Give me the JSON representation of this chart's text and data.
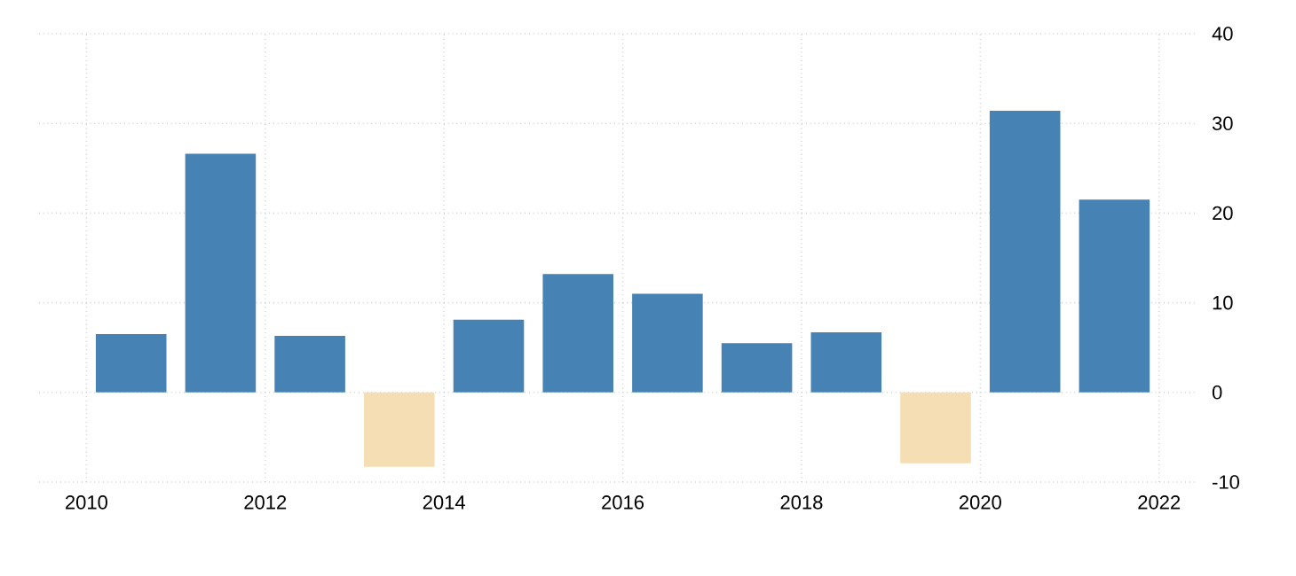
{
  "chart_data": {
    "type": "bar",
    "x": [
      2010.5,
      2011.5,
      2012.5,
      2013.5,
      2014.5,
      2015.5,
      2016.5,
      2017.5,
      2018.5,
      2019.5,
      2020.5,
      2021.5
    ],
    "values": [
      6.5,
      26.6,
      6.3,
      -8.3,
      8.1,
      13.2,
      11.0,
      5.5,
      6.7,
      -7.9,
      31.4,
      21.5
    ],
    "colors": [
      "#4682b4",
      "#4682b4",
      "#4682b4",
      "#f5deb3",
      "#4682b4",
      "#4682b4",
      "#4682b4",
      "#4682b4",
      "#4682b4",
      "#f5deb3",
      "#4682b4",
      "#4682b4"
    ],
    "xlim": [
      2009.47,
      2022.4
    ],
    "xticks": [
      2010,
      2012,
      2014,
      2016,
      2018,
      2020,
      2022
    ],
    "ylim": [
      -10,
      40
    ],
    "yticks": [
      -10,
      0,
      10,
      20,
      30,
      40
    ],
    "grid": true
  }
}
